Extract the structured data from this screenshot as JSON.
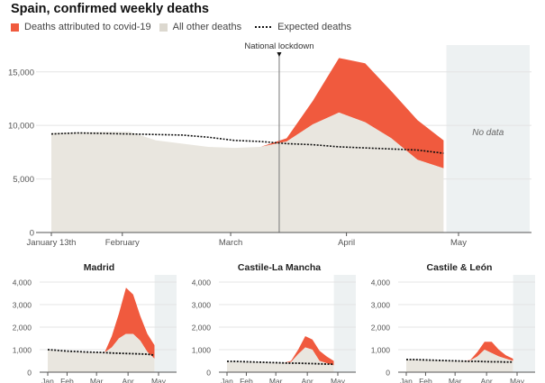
{
  "title": "Spain, confirmed weekly deaths",
  "legend": {
    "covid": "Deaths attributed to covid-19",
    "other": "All other deaths",
    "expected": "Expected deaths"
  },
  "colors": {
    "covid": "#f05a3e",
    "other": "#e9e6df",
    "expected": "#111111",
    "no_data": "#edf1f2",
    "grid": "#e4e4e4"
  },
  "chart_data": [
    {
      "type": "area",
      "title": "Spain, confirmed weekly deaths",
      "weeks": [
        "Jan 13",
        "Jan 20",
        "Jan 27",
        "Feb 3",
        "Feb 10",
        "Feb 17",
        "Feb 24",
        "Mar 2",
        "Mar 9",
        "Mar 16",
        "Mar 23",
        "Mar 30",
        "Apr 6",
        "Apr 13",
        "Apr 20",
        "Apr 27"
      ],
      "series": [
        {
          "name": "All other deaths",
          "values": [
            9300,
            9350,
            9400,
            9400,
            8600,
            8300,
            8000,
            7900,
            8000,
            8500,
            10100,
            11200,
            10300,
            8800,
            6800,
            6000
          ]
        },
        {
          "name": "Deaths attributed to covid-19",
          "values": [
            0,
            0,
            0,
            0,
            0,
            0,
            0,
            0,
            0,
            300,
            2200,
            5100,
            5500,
            4400,
            3700,
            2600
          ]
        },
        {
          "name": "Expected deaths",
          "values": [
            9200,
            9300,
            9250,
            9200,
            9150,
            9100,
            8900,
            8600,
            8500,
            8300,
            8200,
            8000,
            7900,
            7800,
            7700,
            7400
          ]
        }
      ],
      "ylim": [
        0,
        17000
      ],
      "yticks": [
        {
          "v": 0,
          "label": "0"
        },
        {
          "v": 5000,
          "label": "5,000"
        },
        {
          "v": 10000,
          "label": "10,000"
        },
        {
          "v": 15000,
          "label": "15,000"
        }
      ],
      "xticks": [
        {
          "date": "Jan 13",
          "label": "January 13th"
        },
        {
          "date": "Feb 1",
          "label": "February"
        },
        {
          "date": "Mar 1",
          "label": "March"
        },
        {
          "date": "Apr 1",
          "label": "April"
        },
        {
          "date": "May 1",
          "label": "May"
        }
      ],
      "annotation": {
        "date": "Mar 14",
        "label": "National lockdown"
      },
      "no_data": {
        "from": "Apr 28",
        "to": "May 20",
        "label": "No data"
      },
      "grid": true
    },
    {
      "type": "area",
      "title": "Madrid",
      "weeks": [
        "Jan 13",
        "Jan 20",
        "Jan 27",
        "Feb 3",
        "Feb 10",
        "Feb 17",
        "Feb 24",
        "Mar 2",
        "Mar 9",
        "Mar 16",
        "Mar 23",
        "Mar 30",
        "Apr 6",
        "Apr 13",
        "Apr 20",
        "Apr 27"
      ],
      "series": [
        {
          "name": "All other deaths",
          "values": [
            1000,
            950,
            920,
            920,
            900,
            900,
            880,
            880,
            880,
            1100,
            1500,
            1700,
            1700,
            1400,
            900,
            600
          ]
        },
        {
          "name": "Deaths attributed to covid-19",
          "values": [
            0,
            0,
            0,
            0,
            0,
            0,
            0,
            0,
            0,
            500,
            1100,
            2050,
            1750,
            1100,
            800,
            600
          ]
        },
        {
          "name": "Expected deaths",
          "values": [
            1000,
            980,
            950,
            930,
            920,
            900,
            890,
            880,
            870,
            850,
            840,
            830,
            820,
            810,
            800,
            750
          ]
        }
      ],
      "ylim": [
        0,
        4000
      ],
      "yticks": [
        {
          "v": 0,
          "label": "0"
        },
        {
          "v": 1000,
          "label": "1,000"
        },
        {
          "v": 2000,
          "label": "2,000"
        },
        {
          "v": 3000,
          "label": "3,000"
        },
        {
          "v": 4000,
          "label": "4,000"
        }
      ],
      "xticks": [
        {
          "date": "Jan 13",
          "label": "Jan"
        },
        {
          "date": "Feb 1",
          "label": "Feb"
        },
        {
          "date": "Mar 1",
          "label": "Mar"
        },
        {
          "date": "Apr 1",
          "label": "Apr"
        },
        {
          "date": "May 1",
          "label": "May"
        }
      ],
      "no_data": {
        "from": "Apr 28",
        "to": "May 20"
      },
      "grid": true
    },
    {
      "type": "area",
      "title": "Castile-La Mancha",
      "weeks": [
        "Jan 13",
        "Jan 20",
        "Jan 27",
        "Feb 3",
        "Feb 10",
        "Feb 17",
        "Feb 24",
        "Mar 2",
        "Mar 9",
        "Mar 16",
        "Mar 23",
        "Mar 30",
        "Apr 6",
        "Apr 13",
        "Apr 20",
        "Apr 27"
      ],
      "series": [
        {
          "name": "All other deaths",
          "values": [
            450,
            460,
            450,
            450,
            440,
            440,
            430,
            430,
            420,
            450,
            800,
            1100,
            1000,
            500,
            400,
            300
          ]
        },
        {
          "name": "Deaths attributed to covid-19",
          "values": [
            0,
            0,
            0,
            0,
            0,
            0,
            0,
            0,
            0,
            50,
            200,
            500,
            450,
            450,
            300,
            200
          ]
        },
        {
          "name": "Expected deaths",
          "values": [
            480,
            480,
            470,
            460,
            450,
            440,
            430,
            420,
            410,
            400,
            400,
            390,
            380,
            370,
            360,
            350
          ]
        }
      ],
      "ylim": [
        0,
        4000
      ],
      "yticks": [
        {
          "v": 0,
          "label": "0"
        },
        {
          "v": 1000,
          "label": "1,000"
        },
        {
          "v": 2000,
          "label": "2,000"
        },
        {
          "v": 3000,
          "label": "3,000"
        },
        {
          "v": 4000,
          "label": "4,000"
        }
      ],
      "xticks": [
        {
          "date": "Jan 13",
          "label": "Jan"
        },
        {
          "date": "Feb 1",
          "label": "Feb"
        },
        {
          "date": "Mar 1",
          "label": "Mar"
        },
        {
          "date": "Apr 1",
          "label": "Apr"
        },
        {
          "date": "May 1",
          "label": "May"
        }
      ],
      "no_data": {
        "from": "Apr 28",
        "to": "May 20"
      },
      "grid": true
    },
    {
      "type": "area",
      "title": "Castile & León",
      "weeks": [
        "Jan 13",
        "Jan 20",
        "Jan 27",
        "Feb 3",
        "Feb 10",
        "Feb 17",
        "Feb 24",
        "Mar 2",
        "Mar 9",
        "Mar 16",
        "Mar 23",
        "Mar 30",
        "Apr 6",
        "Apr 13",
        "Apr 20",
        "Apr 27"
      ],
      "series": [
        {
          "name": "All other deaths",
          "values": [
            550,
            560,
            550,
            540,
            530,
            520,
            510,
            500,
            500,
            520,
            700,
            1000,
            850,
            700,
            600,
            500
          ]
        },
        {
          "name": "Deaths attributed to covid-19",
          "values": [
            0,
            0,
            0,
            0,
            0,
            0,
            0,
            0,
            0,
            20,
            200,
            350,
            500,
            300,
            150,
            100
          ]
        },
        {
          "name": "Expected deaths",
          "values": [
            560,
            560,
            550,
            540,
            530,
            520,
            510,
            500,
            490,
            480,
            480,
            470,
            460,
            460,
            450,
            450
          ]
        }
      ],
      "ylim": [
        0,
        4000
      ],
      "yticks": [
        {
          "v": 0,
          "label": "0"
        },
        {
          "v": 1000,
          "label": "1,000"
        },
        {
          "v": 2000,
          "label": "2,000"
        },
        {
          "v": 3000,
          "label": "3,000"
        },
        {
          "v": 4000,
          "label": "4,000"
        }
      ],
      "xticks": [
        {
          "date": "Jan 13",
          "label": "Jan"
        },
        {
          "date": "Feb 1",
          "label": "Feb"
        },
        {
          "date": "Mar 1",
          "label": "Mar"
        },
        {
          "date": "Apr 1",
          "label": "Apr"
        },
        {
          "date": "May 1",
          "label": "May"
        }
      ],
      "no_data": {
        "from": "Apr 28",
        "to": "May 20"
      },
      "grid": true
    }
  ]
}
